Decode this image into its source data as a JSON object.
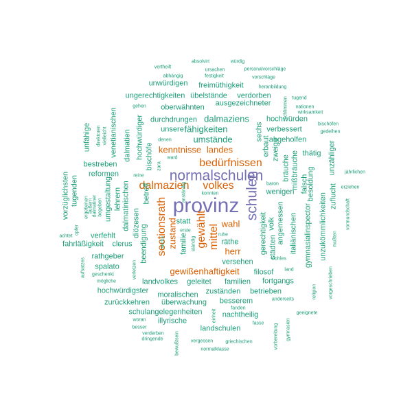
{
  "words": [
    "provinz",
    "normalschulen",
    "schulen",
    "bedürfnissen",
    "dalmazien",
    "volkes",
    "sectionsrath",
    "gewählt",
    "mittel",
    "kenntnisse",
    "landes",
    "gewißenhaftigkeit",
    "zustand",
    "herr",
    "wahl",
    "dalmaziens",
    "umstände",
    "fähigkeiten",
    "absolvirt",
    "würdig",
    "vertheilt",
    "ursachen",
    "personalvorschläge",
    "abhängig",
    "festigkeit",
    "vorschläge",
    "unwürdigen",
    "freimüthigkeit",
    "heranbildung",
    "ungerechtigkeiten",
    "übelstände",
    "verdorben",
    "tugend",
    "gehen",
    "oberwähnten",
    "ausgezeichneter",
    "nationen",
    "wirksamkeit",
    "durchdrungen",
    "hochwürden",
    "bischöfen",
    "unsere",
    "verbessert",
    "gedeihen",
    "abgeholfen",
    "thätig",
    "unzähliger",
    "jährlichen",
    "erziehen",
    "bestreben",
    "reformen",
    "vorzüglichsten",
    "tugenden",
    "unfähige",
    "venetianischen",
    "hochwürdiger",
    "bischöfe",
    "zara",
    "ward",
    "denen",
    "reine",
    "wenigen",
    "baron",
    "unzukömmlichkeiten",
    "zuflucht",
    "besoldung",
    "gymnasialinspector",
    "diözesen",
    "dalmatinischen",
    "betreff",
    "beendigung",
    "statt",
    "räthe",
    "familie",
    "gerechtigkeit",
    "angemessen",
    "volk",
    "städten",
    "italiänischen",
    "versehen",
    "fahrläßigkeit",
    "clerus",
    "rathgeber",
    "verfehlt",
    "spalato",
    "landvolkes",
    "geleitet",
    "familien",
    "filosof",
    "fortgangs",
    "hochwürdigster",
    "moralischen",
    "zuständen",
    "betrieben",
    "zurückkehren",
    "überwachung",
    "besserem",
    "schulangelegenheiten",
    "nachtheilig",
    "illyrische",
    "landschulen",
    "vergessen",
    "griechischen",
    "normalklasse",
    "dringende",
    "verderben",
    "besser",
    "woran",
    "geeignete",
    "anderseits",
    "fanden",
    "fasse",
    "bewußtsein",
    "einheit",
    "vorbereitung",
    "gymnasien",
    "religion",
    "vorgeschrieben",
    "mußten",
    "vormundschaft",
    "konnten",
    "erste",
    "ruhe",
    "land",
    "wohles",
    "achtet",
    "opfer",
    "mögliche",
    "geschenkt",
    "aufsatzes",
    "verletzen",
    "umgestaltung",
    "lehrern",
    "dalmatiner",
    "ergebenen",
    "äußern",
    "begeben",
    "schlimmen",
    "dalmatien",
    "vielleicht",
    "direktoren",
    "bräuche",
    "mißbräuche",
    "falsch",
    "zweige",
    "erbaut",
    "sechs",
    "ständig",
    "anständig",
    "seine",
    "iii"
  ]
}
